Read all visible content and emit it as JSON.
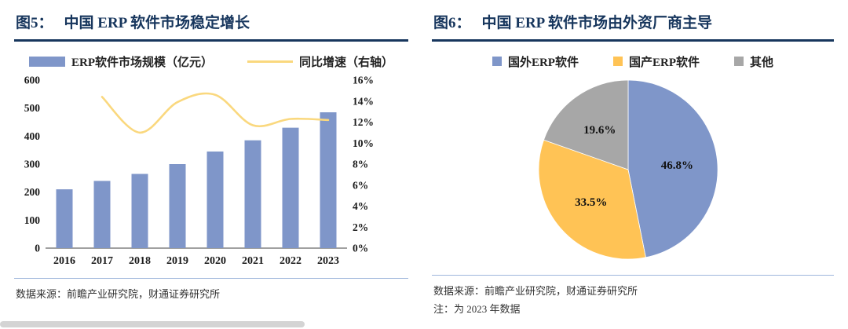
{
  "figure5": {
    "title_prefix": "图5：",
    "title": "中国 ERP 软件市场稳定增长",
    "source": "数据来源：前瞻产业研究院，财通证券研究所"
  },
  "figure6": {
    "title_prefix": "图6：",
    "title": "中国 ERP 软件市场由外资厂商主导",
    "source": "数据来源：前瞻产业研究院，财通证券研究所",
    "note": "注：为 2023 年数据"
  },
  "colors": {
    "title_navy": "#17365D",
    "bar_blue": "#7F96C9",
    "line_yellow": "#FAD87E",
    "pie_blue": "#7F96C9",
    "pie_yellow": "#FFC355",
    "pie_gray": "#A7A7A7",
    "divider_blue": "#9FB6DC"
  },
  "chart_data": [
    {
      "id": "erp-market-combo",
      "type": "bar",
      "title": "中国 ERP 软件市场稳定增长",
      "categories": [
        "2016",
        "2017",
        "2018",
        "2019",
        "2020",
        "2021",
        "2022",
        "2023"
      ],
      "series": [
        {
          "name": "ERP软件市场规模（亿元）",
          "type": "bar",
          "axis": "left",
          "color": "#7F96C9",
          "values": [
            210,
            240,
            265,
            300,
            345,
            385,
            430,
            485
          ]
        },
        {
          "name": "同比增速（右轴）",
          "type": "line",
          "axis": "right",
          "color": "#FAD87E",
          "values": [
            null,
            14.4,
            11.0,
            13.9,
            14.6,
            11.7,
            12.3,
            12.2
          ]
        }
      ],
      "left_axis": {
        "min": 0,
        "max": 600,
        "step": 100,
        "suffix": ""
      },
      "right_axis": {
        "min": 0,
        "max": 16,
        "step": 2,
        "suffix": "%"
      },
      "grid": false,
      "legend_position": "top"
    },
    {
      "id": "erp-vendor-pie",
      "type": "pie",
      "title": "中国 ERP 软件市场由外资厂商主导",
      "slices": [
        {
          "label": "国外ERP软件",
          "value": 46.8,
          "color": "#7F96C9"
        },
        {
          "label": "国产ERP软件",
          "value": 33.5,
          "color": "#FFC355"
        },
        {
          "label": "其他",
          "value": 19.6,
          "color": "#A7A7A7"
        }
      ],
      "start_angle_deg": 0,
      "direction": "clockwise",
      "label_format": "percent",
      "legend_position": "top"
    }
  ]
}
